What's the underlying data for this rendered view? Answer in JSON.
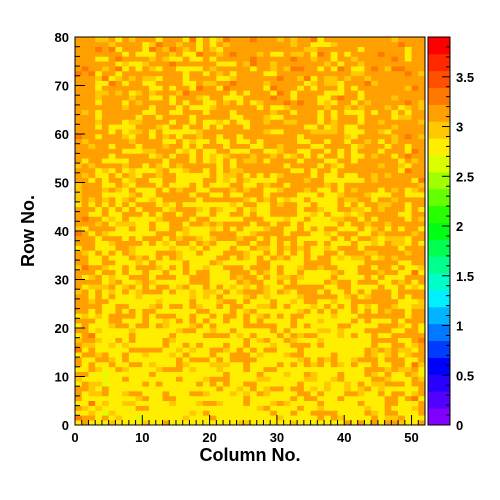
{
  "chart_data": {
    "type": "heatmap",
    "title": "",
    "xlabel": "Column No.",
    "ylabel": "Row No.",
    "xlim": [
      0,
      52
    ],
    "ylim": [
      0,
      80
    ],
    "x_ticks": [
      "0",
      "10",
      "20",
      "30",
      "40",
      "50"
    ],
    "y_ticks": [
      "0",
      "10",
      "20",
      "30",
      "40",
      "50",
      "60",
      "70",
      "80"
    ],
    "colorbar": {
      "range": [
        0,
        3.9
      ],
      "ticks": [
        "0",
        "0.5",
        "1",
        "1.5",
        "2",
        "2.5",
        "3",
        "3.5"
      ],
      "colors": [
        "#7f00ff",
        "#5200ff",
        "#2800ff",
        "#0000ff",
        "#003cff",
        "#0078ff",
        "#00b4ff",
        "#00f0ff",
        "#00ffc8",
        "#00ff8c",
        "#00ff50",
        "#00ff14",
        "#28ff00",
        "#64ff00",
        "#a0ff00",
        "#dcff00",
        "#ffee00",
        "#ffc800",
        "#ffa000",
        "#ff7800",
        "#ff5000",
        "#ff2800",
        "#ff0000"
      ]
    },
    "cell_colors": {
      "low": "#dcff00",
      "yellow": "#ffee00",
      "gold": "#ffc800",
      "orange": "#ffa000",
      "red": "#ff7800",
      "deep": "#ff5000"
    },
    "grid_cols": 52,
    "grid_rows": 80,
    "distribution": {
      "description_values": "cell values range ~2.6 to ~3.7; lower (yellow ~3.0) near the bottom-left, higher (orange ~3.3) toward the top and right edge columns",
      "typical_min": 2.6,
      "typical_max": 3.7
    }
  }
}
